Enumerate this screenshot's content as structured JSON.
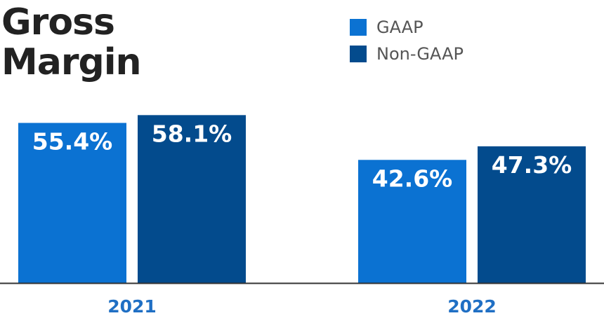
{
  "chart_data": {
    "type": "bar",
    "title_lines": [
      "Gross",
      "Margin"
    ],
    "categories": [
      "2021",
      "2022"
    ],
    "series": [
      {
        "name": "GAAP",
        "color": "#0b72d2",
        "values": [
          55.4,
          42.6
        ],
        "labels": [
          "55.4%",
          "42.6%"
        ]
      },
      {
        "name": "Non-GAAP",
        "color": "#034b8d",
        "values": [
          58.1,
          47.3
        ],
        "labels": [
          "58.1%",
          "47.3%"
        ]
      }
    ],
    "ylim": [
      0,
      80
    ],
    "grid": false,
    "legend_position": "top-right",
    "axis_color": "#333333",
    "tick_label_color": "#1f6fc4"
  }
}
